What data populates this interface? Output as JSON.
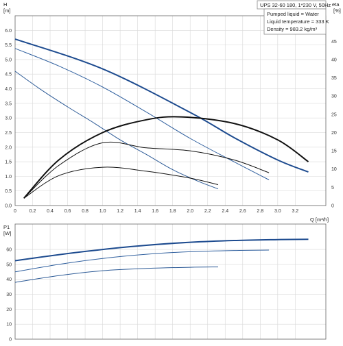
{
  "chart_data": [
    {
      "type": "line",
      "panel": "pump-curve",
      "title": "UPS 32-60 180, 1*230 V, 50Hz",
      "annotations": [
        "Pumped liquid = Water",
        "Liquid temperature = 333 K",
        "Density = 983.2 kg/m³"
      ],
      "xlabel": "Q [m³/h]",
      "ylabel_left": "H [m]",
      "ylabel_right": "eta [%]",
      "xlim": [
        0,
        3.55
      ],
      "xticks": [
        "0",
        "0.2",
        "0.4",
        "0.6",
        "0.8",
        "1.0",
        "1.2",
        "1.4",
        "1.6",
        "1.8",
        "2.0",
        "2.2",
        "2.4",
        "2.6",
        "2.8",
        "3.0",
        "3.2"
      ],
      "ylim_left": [
        0,
        6.5
      ],
      "yticks_left": [
        "0.0",
        "0.5",
        "1.0",
        "1.5",
        "2.0",
        "2.5",
        "3.0",
        "3.5",
        "4.0",
        "4.5",
        "5.0",
        "5.5",
        "6.0"
      ],
      "ylim_right": [
        0,
        52
      ],
      "yticks_right": [
        "0",
        "5",
        "10",
        "15",
        "20",
        "25",
        "30",
        "35",
        "40",
        "45"
      ],
      "grid": true,
      "head_series": [
        {
          "speed": 3,
          "x": [
            0,
            1.0,
            2.0,
            2.5,
            3.0,
            3.35
          ],
          "y": [
            5.7,
            4.68,
            3.19,
            2.33,
            1.56,
            1.15
          ]
        },
        {
          "speed": 2,
          "x": [
            0,
            0.5,
            1.0,
            1.5,
            2.0,
            2.5,
            2.9
          ],
          "y": [
            5.38,
            4.78,
            4.06,
            3.2,
            2.3,
            1.5,
            0.88
          ]
        },
        {
          "speed": 1,
          "x": [
            0,
            0.3,
            0.6,
            0.9,
            1.2,
            1.5,
            1.8,
            2.1,
            2.32
          ],
          "y": [
            4.6,
            3.96,
            3.38,
            2.83,
            2.25,
            1.75,
            1.23,
            0.82,
            0.57
          ]
        }
      ],
      "eta_series": [
        {
          "speed": 3,
          "x": [
            0.1,
            0.5,
            1.0,
            1.5,
            1.9,
            2.5,
            3.0,
            3.35
          ],
          "y": [
            2,
            12.5,
            20,
            23.5,
            24.3,
            22.5,
            18,
            12
          ]
        },
        {
          "speed": 2,
          "x": [
            0.1,
            0.5,
            1.0,
            1.5,
            2.0,
            2.5,
            2.9
          ],
          "y": [
            2,
            11,
            17.2,
            15.8,
            15,
            12.5,
            9
          ]
        },
        {
          "speed": 1,
          "x": [
            0.1,
            0.5,
            1.0,
            1.5,
            2.0,
            2.32
          ],
          "y": [
            2,
            8.2,
            10.5,
            9.4,
            7.5,
            5.7
          ]
        }
      ]
    },
    {
      "type": "line",
      "panel": "power-curve",
      "xlabel": "",
      "ylabel": "P1 [W]",
      "xlim": [
        0,
        3.55
      ],
      "ylim": [
        0,
        77
      ],
      "yticks": [
        "0",
        "10",
        "20",
        "30",
        "40",
        "50",
        "60"
      ],
      "grid": true,
      "series": [
        {
          "speed": 3,
          "x": [
            0,
            0.5,
            1.0,
            1.5,
            2.0,
            2.5,
            3.0,
            3.35
          ],
          "y": [
            52.5,
            56.5,
            60,
            62.8,
            64.8,
            66,
            66.6,
            66.8
          ]
        },
        {
          "speed": 2,
          "x": [
            0,
            0.5,
            1.0,
            1.5,
            2.0,
            2.5,
            2.9
          ],
          "y": [
            45,
            50,
            54,
            56.8,
            58.5,
            59.3,
            59.6
          ]
        },
        {
          "speed": 1,
          "x": [
            0,
            0.5,
            1.0,
            1.5,
            2.0,
            2.32
          ],
          "y": [
            38,
            42.5,
            45.8,
            47.3,
            48.1,
            48.3
          ]
        }
      ]
    }
  ],
  "colors": {
    "speed3": "#1d4b8f",
    "speed2": "#2f5f9e",
    "speed1": "#2c5a96",
    "eta": "#111111",
    "grid": "#d9d9d9",
    "frame": "#666666"
  }
}
